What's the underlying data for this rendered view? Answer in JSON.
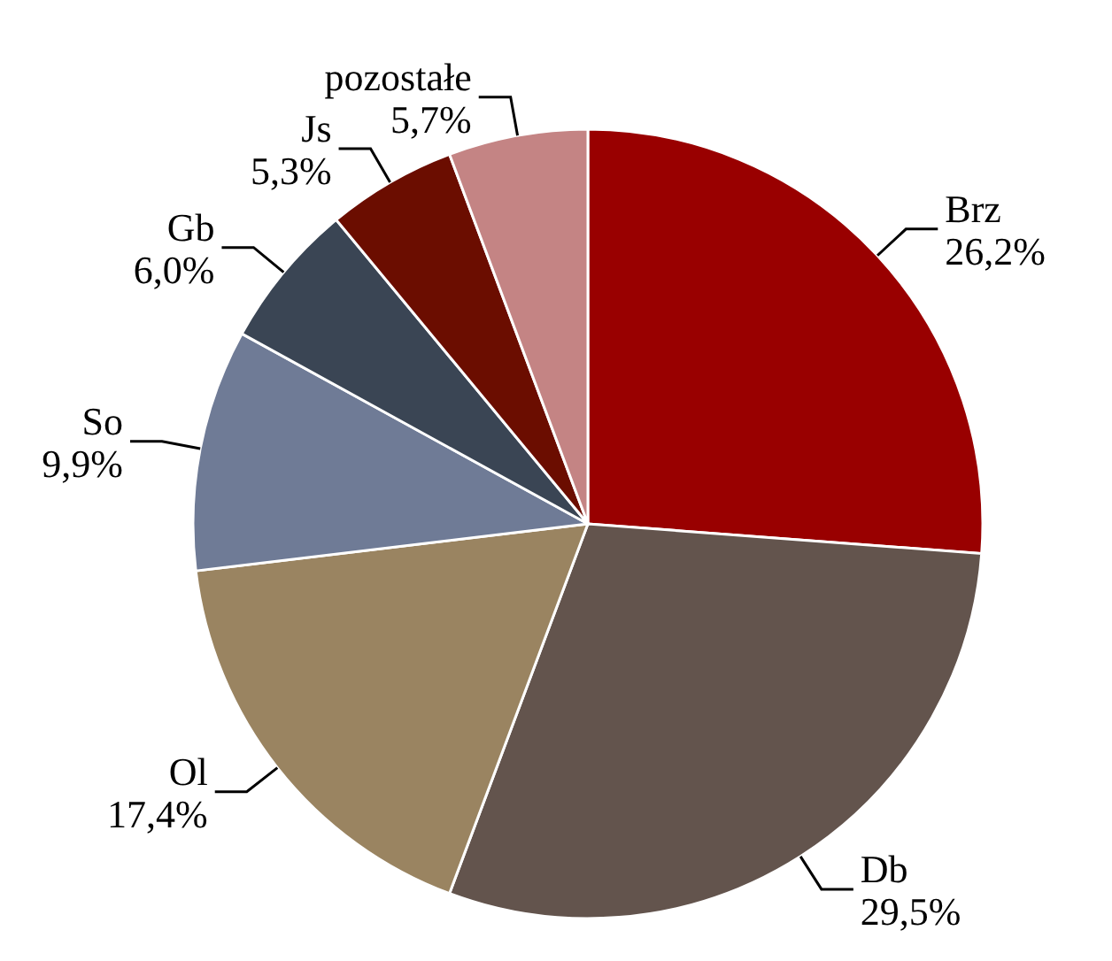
{
  "chart_data": {
    "type": "pie",
    "categories": [
      "Brz",
      "Db",
      "Ol",
      "So",
      "Gb",
      "Js",
      "pozostałe"
    ],
    "values": [
      26.2,
      29.5,
      17.4,
      9.9,
      6.0,
      5.3,
      5.7
    ],
    "value_labels": [
      "26,2%",
      "29,5%",
      "17,4%",
      "9,9%",
      "6,0%",
      "5,3%",
      "5,7%"
    ],
    "colors": [
      "#990000",
      "#63544d",
      "#9a8461",
      "#6f7b96",
      "#3a4554",
      "#6b0d00",
      "#c48484"
    ],
    "legend": false
  }
}
